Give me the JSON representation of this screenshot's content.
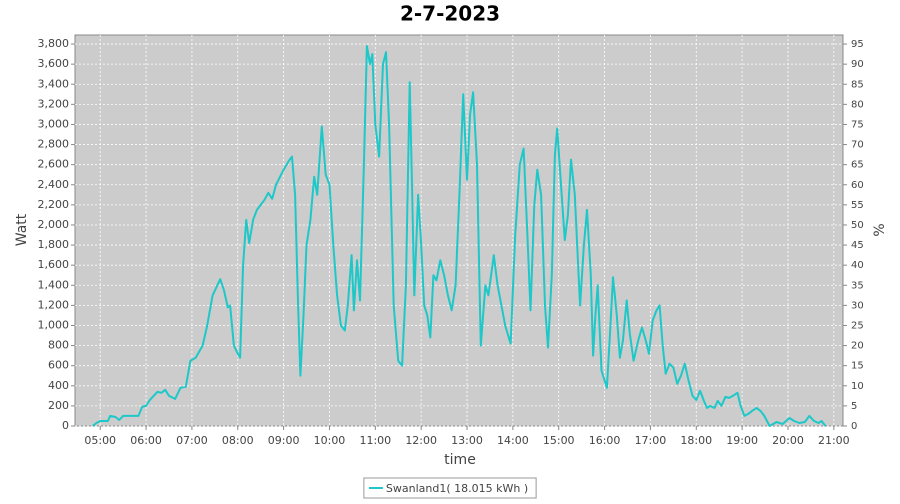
{
  "chart_data": {
    "type": "line",
    "title": "2-7-2023",
    "x_label": "time",
    "y_label": "Watt",
    "y2_label": "%",
    "x": [
      "04:50",
      "04:55",
      "05:00",
      "05:10",
      "05:13",
      "05:20",
      "05:25",
      "05:30",
      "05:40",
      "05:50",
      "05:55",
      "06:00",
      "06:05",
      "06:10",
      "06:15",
      "06:20",
      "06:25",
      "06:30",
      "06:38",
      "06:45",
      "06:52",
      "06:58",
      "07:05",
      "07:14",
      "07:20",
      "07:27",
      "07:32",
      "07:37",
      "07:42",
      "07:47",
      "07:50",
      "07:55",
      "07:58",
      "08:03",
      "08:07",
      "08:11",
      "08:15",
      "08:20",
      "08:25",
      "08:35",
      "08:40",
      "08:45",
      "08:50",
      "09:00",
      "09:07",
      "09:11",
      "09:15",
      "09:19",
      "09:22",
      "09:26",
      "09:30",
      "09:35",
      "09:40",
      "09:44",
      "09:50",
      "09:55",
      "10:00",
      "10:05",
      "10:10",
      "10:15",
      "10:20",
      "10:24",
      "10:29",
      "10:32",
      "10:36",
      "10:40",
      "10:45",
      "10:49",
      "10:53",
      "10:56",
      "11:00",
      "11:05",
      "11:10",
      "11:14",
      "11:18",
      "11:24",
      "11:30",
      "11:35",
      "11:40",
      "11:45",
      "11:48",
      "11:51",
      "11:56",
      "12:00",
      "12:04",
      "12:08",
      "12:12",
      "12:16",
      "12:20",
      "12:25",
      "12:30",
      "12:35",
      "12:40",
      "12:45",
      "12:50",
      "12:55",
      "13:00",
      "13:04",
      "13:08",
      "13:13",
      "13:18",
      "13:24",
      "13:28",
      "13:35",
      "13:40",
      "13:45",
      "13:50",
      "13:57",
      "14:03",
      "14:09",
      "14:14",
      "14:19",
      "14:23",
      "14:28",
      "14:32",
      "14:37",
      "14:42",
      "14:46",
      "14:51",
      "14:55",
      "14:58",
      "15:03",
      "15:08",
      "15:12",
      "15:16",
      "15:21",
      "15:26",
      "15:28",
      "15:33",
      "15:37",
      "15:42",
      "15:45",
      "15:48",
      "15:51",
      "15:56",
      "16:03",
      "16:07",
      "16:11",
      "16:16",
      "16:20",
      "16:24",
      "16:29",
      "16:33",
      "16:38",
      "16:44",
      "16:49",
      "16:54",
      "16:58",
      "17:03",
      "17:08",
      "17:12",
      "17:16",
      "17:20",
      "17:25",
      "17:30",
      "17:35",
      "17:40",
      "17:45",
      "17:50",
      "17:55",
      "18:00",
      "18:05",
      "18:10",
      "18:14",
      "18:18",
      "18:24",
      "18:28",
      "18:33",
      "18:38",
      "18:43",
      "18:48",
      "18:54",
      "18:58",
      "19:03",
      "19:08",
      "19:13",
      "19:19",
      "19:24",
      "19:29",
      "19:36",
      "19:45",
      "19:53",
      "20:02",
      "20:08",
      "20:15",
      "20:22",
      "20:28",
      "20:34",
      "20:40",
      "20:44",
      "20:49"
    ],
    "series": [
      {
        "name": "Swanland1( 18.015 kWh )",
        "color": "#1ec8c8",
        "values": [
          0,
          30,
          50,
          50,
          100,
          90,
          60,
          100,
          100,
          100,
          190,
          200,
          260,
          300,
          340,
          330,
          360,
          300,
          270,
          380,
          390,
          650,
          680,
          800,
          1000,
          1300,
          1380,
          1460,
          1350,
          1180,
          1200,
          800,
          750,
          680,
          1600,
          2050,
          1820,
          2050,
          2150,
          2250,
          2320,
          2260,
          2400,
          2550,
          2640,
          2680,
          2300,
          1200,
          500,
          1100,
          1800,
          2050,
          2480,
          2300,
          2980,
          2500,
          2400,
          1800,
          1300,
          1000,
          950,
          1200,
          1700,
          1150,
          1650,
          1250,
          2600,
          3780,
          3600,
          3700,
          3000,
          2680,
          3600,
          3720,
          3000,
          1200,
          650,
          600,
          1400,
          3420,
          2400,
          1300,
          2300,
          1800,
          1200,
          1100,
          880,
          1500,
          1450,
          1650,
          1500,
          1300,
          1150,
          1400,
          2300,
          3300,
          2450,
          3100,
          3320,
          2600,
          800,
          1400,
          1300,
          1700,
          1400,
          1200,
          1000,
          820,
          1900,
          2600,
          2760,
          1900,
          1150,
          2200,
          2550,
          2300,
          1200,
          780,
          1500,
          2700,
          2960,
          2400,
          1850,
          2100,
          2650,
          2300,
          1500,
          1200,
          1800,
          2150,
          1500,
          700,
          1100,
          1400,
          550,
          380,
          900,
          1480,
          1100,
          680,
          850,
          1250,
          920,
          650,
          850,
          980,
          850,
          720,
          1050,
          1150,
          1200,
          800,
          520,
          620,
          580,
          420,
          500,
          620,
          450,
          300,
          260,
          350,
          250,
          180,
          200,
          180,
          250,
          200,
          290,
          280,
          300,
          330,
          200,
          100,
          120,
          150,
          180,
          150,
          100,
          0,
          40,
          20,
          80,
          50,
          30,
          40,
          100,
          50,
          30,
          50,
          0
        ]
      }
    ],
    "xlim": [
      "04:27",
      "21:12"
    ],
    "xticks": [
      "05:00",
      "06:00",
      "07:00",
      "08:00",
      "09:00",
      "10:00",
      "11:00",
      "12:00",
      "13:00",
      "14:00",
      "15:00",
      "16:00",
      "17:00",
      "18:00",
      "19:00",
      "20:00",
      "21:00"
    ],
    "ylim": [
      0,
      3890
    ],
    "yticks": [
      0,
      200,
      400,
      600,
      800,
      {
        "value": 1000,
        "label": "1,000"
      },
      {
        "value": 1200,
        "label": "1,200"
      },
      {
        "value": 1400,
        "label": "1,400"
      },
      {
        "value": 1600,
        "label": "1,600"
      },
      {
        "value": 1800,
        "label": "1,800"
      },
      {
        "value": 2000,
        "label": "2,000"
      },
      {
        "value": 2200,
        "label": "2,200"
      },
      {
        "value": 2400,
        "label": "2,400"
      },
      {
        "value": 2600,
        "label": "2,600"
      },
      {
        "value": 2800,
        "label": "2,800"
      },
      {
        "value": 3000,
        "label": "3,000"
      },
      {
        "value": 3200,
        "label": "3,200"
      },
      {
        "value": 3400,
        "label": "3,400"
      },
      {
        "value": 3600,
        "label": "3,600"
      },
      {
        "value": 3800,
        "label": "3,800"
      }
    ],
    "y2lim": [
      0,
      97.25
    ],
    "y2ticks": [
      0,
      5,
      10,
      15,
      20,
      25,
      30,
      35,
      40,
      45,
      50,
      55,
      60,
      65,
      70,
      75,
      80,
      85,
      90,
      95
    ],
    "grid": true,
    "legend": "bottom",
    "plot_background": "#cccccc"
  }
}
